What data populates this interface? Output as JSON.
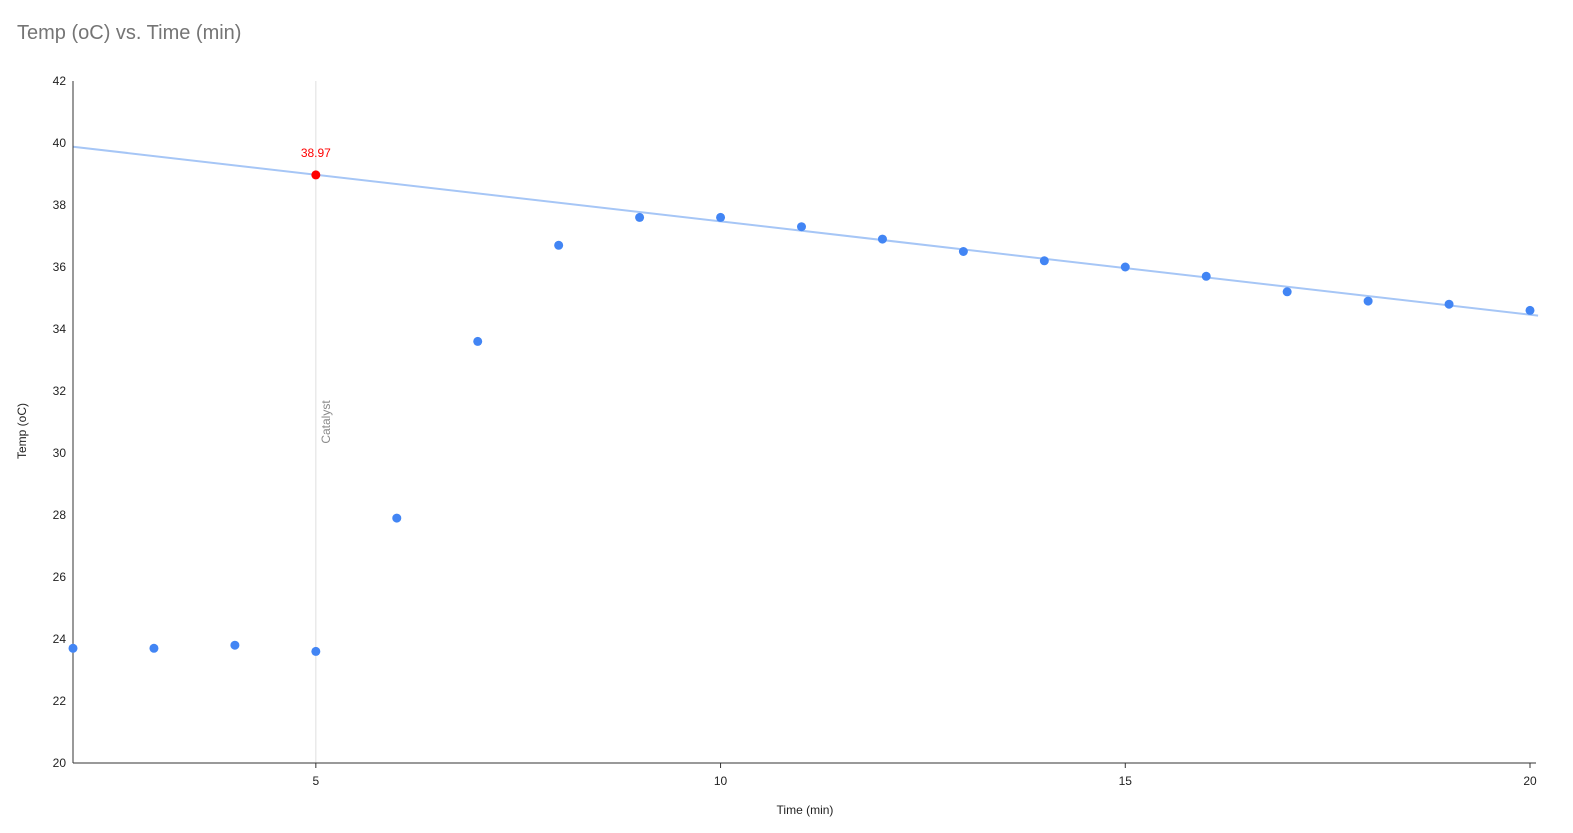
{
  "chart_data": {
    "type": "scatter",
    "title": "Temp (oC) vs. Time (min)",
    "xlabel": "Time (min)",
    "ylabel": "Temp (oC)",
    "xlim": [
      2,
      20
    ],
    "ylim": [
      20,
      42
    ],
    "x_ticks": [
      5,
      10,
      15,
      20
    ],
    "y_ticks": [
      20,
      22,
      24,
      26,
      28,
      30,
      32,
      34,
      36,
      38,
      40,
      42
    ],
    "grid": false,
    "legend": "none",
    "series": [
      {
        "color": "#4285f4",
        "points": [
          {
            "x": 2,
            "y": 23.7
          },
          {
            "x": 3,
            "y": 23.7
          },
          {
            "x": 4,
            "y": 23.8
          },
          {
            "x": 5,
            "y": 23.6
          },
          {
            "x": 6,
            "y": 27.9
          },
          {
            "x": 7,
            "y": 33.6
          },
          {
            "x": 8,
            "y": 36.7
          },
          {
            "x": 9,
            "y": 37.6
          },
          {
            "x": 10,
            "y": 37.6
          },
          {
            "x": 11,
            "y": 37.3
          },
          {
            "x": 12,
            "y": 36.9
          },
          {
            "x": 13,
            "y": 36.5
          },
          {
            "x": 14,
            "y": 36.2
          },
          {
            "x": 15,
            "y": 36.0
          },
          {
            "x": 16,
            "y": 35.7
          },
          {
            "x": 17,
            "y": 35.2
          },
          {
            "x": 18,
            "y": 34.9
          },
          {
            "x": 19,
            "y": 34.8
          },
          {
            "x": 20,
            "y": 34.6
          }
        ]
      }
    ],
    "trendline": {
      "color": "#a6c6f6",
      "x": [
        2,
        20.1
      ],
      "y": [
        39.88,
        34.43
      ]
    },
    "highlight_point": {
      "x": 5,
      "y": 38.97,
      "label": "38.97",
      "color": "#ff0000"
    },
    "annotation": {
      "x": 5,
      "label": "Catalyst",
      "color": "#e0e0e0"
    }
  }
}
